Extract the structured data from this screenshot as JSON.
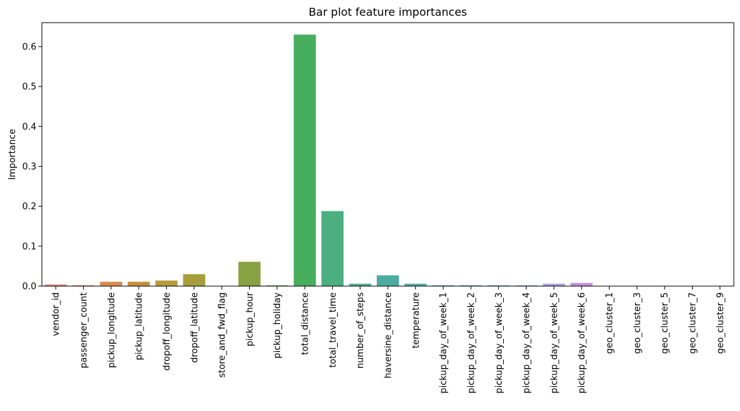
{
  "chart_data": {
    "type": "bar",
    "title": "Bar plot feature importances",
    "xlabel": "",
    "ylabel": "Importance",
    "ylim": [
      0,
      0.66
    ],
    "yticks": [
      0.0,
      0.1,
      0.2,
      0.3,
      0.4,
      0.5,
      0.6
    ],
    "ytick_labels": [
      "0.0",
      "0.1",
      "0.2",
      "0.3",
      "0.4",
      "0.5",
      "0.6"
    ],
    "grid": false,
    "legend": "none",
    "categories": [
      "vendor_id",
      "passenger_count",
      "pickup_longitude",
      "pickup_latitude",
      "dropoff_longitude",
      "dropoff_latitude",
      "store_and_fwd_flag",
      "pickup_hour",
      "pickup_holiday",
      "total_distance",
      "total_travel_time",
      "number_of_steps",
      "haversine_distance",
      "temperature",
      "pickup_day_of_week_1",
      "pickup_day_of_week_2",
      "pickup_day_of_week_3",
      "pickup_day_of_week_4",
      "pickup_day_of_week_5",
      "pickup_day_of_week_6",
      "geo_cluster_1",
      "geo_cluster_3",
      "geo_cluster_5",
      "geo_cluster_7",
      "geo_cluster_9"
    ],
    "values": [
      0.004,
      0.002,
      0.011,
      0.011,
      0.014,
      0.03,
      0.0,
      0.061,
      0.002,
      0.63,
      0.188,
      0.006,
      0.027,
      0.006,
      0.002,
      0.002,
      0.002,
      0.002,
      0.006,
      0.008,
      0.0,
      0.0,
      0.0,
      0.0,
      0.0
    ],
    "colors": [
      "#e2847a",
      "#d9785a",
      "#d88b4f",
      "#c68f3d",
      "#b59d3d",
      "#a69e3a",
      "#9aa43a",
      "#89a244",
      "#6fa84b",
      "#47ae5e",
      "#4caf7f",
      "#4bae92",
      "#4bac9f",
      "#4eaaad",
      "#51a8ba",
      "#55a6c6",
      "#66a4d6",
      "#8ea0e0",
      "#a89ce6",
      "#c08fe0",
      "#d08bd6",
      "#dc88c6",
      "#e287b5",
      "#e685a4",
      "#e48795"
    ]
  }
}
